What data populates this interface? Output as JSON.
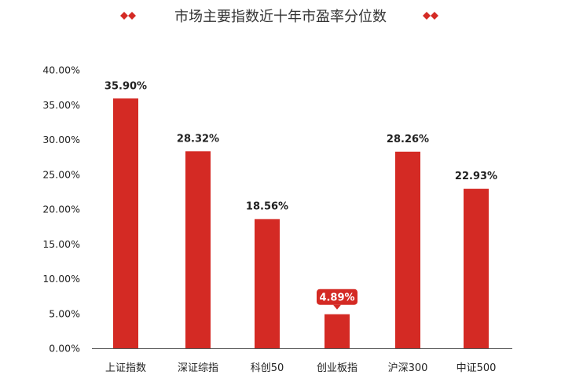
{
  "title": "市场主要指数近十年市盈率分位数",
  "colors": {
    "bar": "#d42a24",
    "highlight": "#d42a24",
    "axis": "#555555",
    "text": "#222222"
  },
  "chart_data": {
    "type": "bar",
    "title": "市场主要指数近十年市盈率分位数",
    "xlabel": "",
    "ylabel": "",
    "ylim": [
      0,
      40
    ],
    "yticks": [
      "0.00%",
      "5.00%",
      "10.00%",
      "15.00%",
      "20.00%",
      "25.00%",
      "30.00%",
      "35.00%",
      "40.00%"
    ],
    "categories": [
      "上证指数",
      "深证综指",
      "科创50",
      "创业板指",
      "沪深300",
      "中证500"
    ],
    "values": [
      35.9,
      28.32,
      18.56,
      4.89,
      28.26,
      22.93
    ],
    "labels": [
      "35.90%",
      "28.32%",
      "18.56%",
      "4.89%",
      "28.26%",
      "22.93%"
    ],
    "highlight_index": 3,
    "grid": false,
    "legend": "none"
  }
}
